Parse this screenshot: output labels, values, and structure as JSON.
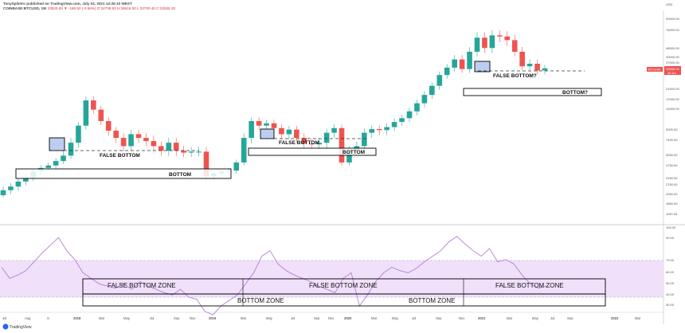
{
  "header": {
    "published_line": "TonySpilotro published on TradingView.com, July 02, 2021 14:26:10 WEST",
    "symbol_line_prefix": "COINBASE:BTCUSD, 1W",
    "symbol_line_values": "33520.83 ▼ -186.50 (-0.56%) O:34708.53 H:36615.00 L:32700.40 C:33535.20"
  },
  "price_scale": {
    "labels": [
      "USD",
      "90000.00",
      "74000.00",
      "48000.00",
      "40000.00",
      "37000.00",
      "21000.00",
      "17000.00",
      "14000.00",
      "9000.00",
      "7400.00",
      "5950.00",
      "4750.00",
      "3150.00",
      "2750.00",
      "2250.00",
      "1850.00",
      "1150.00"
    ],
    "current_price_label": "33536.26",
    "current_price_sub": "3d 11h",
    "symbol_tag": "BTCUSD"
  },
  "rsi_scale": {
    "labels": [
      "100.00",
      "90.00",
      "70.00",
      "60.00",
      "50.00",
      "40.00",
      "30.00"
    ]
  },
  "time_axis": {
    "labels": [
      "Jul",
      "Aug",
      "S",
      "2018",
      "Mar",
      "May",
      "Jul",
      "Sep",
      "Nov",
      "2019",
      "Mar",
      "May",
      "Jul",
      "Sep",
      "Nov",
      "2020",
      "Mar",
      "May",
      "Jul",
      "Sep",
      "Nov",
      "2021",
      "Mar",
      "May",
      "Jul",
      "Sep",
      "2022",
      "Mar"
    ]
  },
  "annotations": {
    "false_bottom_1": "FALSE BOTTOM",
    "bottom_1": "BOTTOM",
    "false_bottom_2": "FALSE BOTTOM",
    "bottom_2": "BOTTOM",
    "false_bottom_3": "FALSE BOTTOM?",
    "bottom_3": "BOTTOM?",
    "rsi_false_zone_1": "FALSE BOTTOM ZONE",
    "rsi_false_zone_2": "FALSE BOTTOM ZONE",
    "rsi_false_zone_3": "FALSE BOTTOM ZONE",
    "rsi_bottom_zone_1": "BOTTOM ZONE",
    "rsi_bottom_zone_2": "BOTTOM ZONE"
  },
  "branding": {
    "logo_text": "TradingView"
  },
  "colors": {
    "up": "#26a69a",
    "down": "#ef5350",
    "rsi_line": "#b57edc",
    "rsi_band": "#f0e0fa",
    "price_tag": "#ef5350"
  },
  "chart_data": {
    "type": "candlestick",
    "timeframe": "1W",
    "price_log_scale": true,
    "price_close_approx": [
      2500,
      2700,
      3000,
      3300,
      3900,
      4300,
      4600,
      5200,
      6000,
      7400,
      10000,
      17000,
      14000,
      11000,
      9000,
      8000,
      7000,
      8500,
      8000,
      7600,
      7000,
      6500,
      7400,
      6500,
      6300,
      6400,
      6400,
      3400,
      3700,
      3900,
      4000,
      5000,
      8000,
      11000,
      10000,
      10500,
      9500,
      8500,
      9200,
      8000,
      7300,
      7200,
      7400,
      8700,
      9500,
      5000,
      6500,
      7000,
      8700,
      9300,
      9100,
      9700,
      10800,
      11700,
      13500,
      16000,
      19000,
      23000,
      29000,
      34000,
      40000,
      33000,
      46000,
      57000,
      49000,
      59000,
      58000,
      55000,
      46000,
      35000,
      37000,
      32000,
      33520
    ],
    "rsi_approx": [
      65,
      55,
      58,
      62,
      70,
      78,
      85,
      92,
      80,
      72,
      60,
      55,
      50,
      48,
      46,
      50,
      45,
      52,
      48,
      45,
      42,
      40,
      45,
      38,
      36,
      25,
      22,
      30,
      35,
      40,
      50,
      60,
      75,
      80,
      68,
      62,
      58,
      55,
      52,
      48,
      45,
      42,
      55,
      60,
      30,
      40,
      52,
      60,
      65,
      62,
      60,
      64,
      70,
      75,
      80,
      88,
      93,
      86,
      80,
      75,
      82,
      70,
      72,
      68,
      58,
      50,
      46,
      48
    ]
  }
}
